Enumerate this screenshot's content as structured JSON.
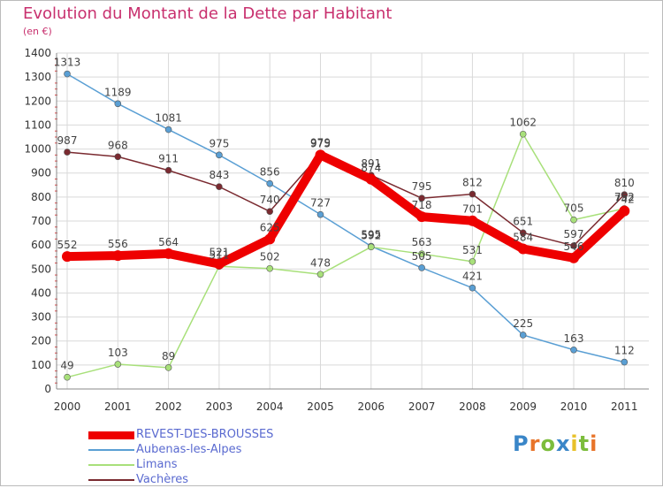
{
  "title": "Evolution du Montant de la Dette par Habitant",
  "subtitle": "(en €)",
  "logo": {
    "text": "Proxiti",
    "letters": [
      {
        "ch": "P",
        "color": "#3a86c8"
      },
      {
        "ch": "r",
        "color": "#e8742a"
      },
      {
        "ch": "o",
        "color": "#7cbd3c"
      },
      {
        "ch": "x",
        "color": "#3a86c8"
      },
      {
        "ch": "i",
        "color": "#e8c12a"
      },
      {
        "ch": "t",
        "color": "#7cbd3c"
      },
      {
        "ch": "i",
        "color": "#e8742a"
      }
    ]
  },
  "chart_data": {
    "type": "line",
    "title": "Evolution du Montant de la Dette par Habitant",
    "ylabel": "(en €)",
    "xlabel": "",
    "ylim": [
      0,
      1400
    ],
    "yticks": [
      0,
      100,
      200,
      300,
      400,
      500,
      600,
      700,
      800,
      900,
      1000,
      1100,
      1200,
      1300,
      1400
    ],
    "categories": [
      "2000",
      "2001",
      "2002",
      "2003",
      "2004",
      "2005",
      "2006",
      "2007",
      "2008",
      "2009",
      "2010",
      "2011"
    ],
    "grid": true,
    "legend_position": "bottom-left",
    "series": [
      {
        "name": "REVEST-DES-BROUSSES",
        "color": "#ee0000",
        "values": [
          552,
          556,
          564,
          521,
          625,
          975,
          874,
          718,
          701,
          584,
          546,
          742
        ],
        "thick": true
      },
      {
        "name": "Aubenas-les-Alpes",
        "color": "#5a9fd4",
        "values": [
          1313,
          1189,
          1081,
          975,
          856,
          727,
          595,
          505,
          421,
          225,
          163,
          112
        ],
        "thick": false
      },
      {
        "name": "Limans",
        "color": "#a8e07a",
        "values": [
          49,
          103,
          89,
          511,
          502,
          478,
          592,
          563,
          531,
          1062,
          705,
          752
        ],
        "thick": false
      },
      {
        "name": "Vachères",
        "color": "#7a2a30",
        "values": [
          987,
          968,
          911,
          843,
          740,
          979,
          891,
          795,
          812,
          651,
          597,
          810
        ],
        "thick": false
      }
    ]
  }
}
